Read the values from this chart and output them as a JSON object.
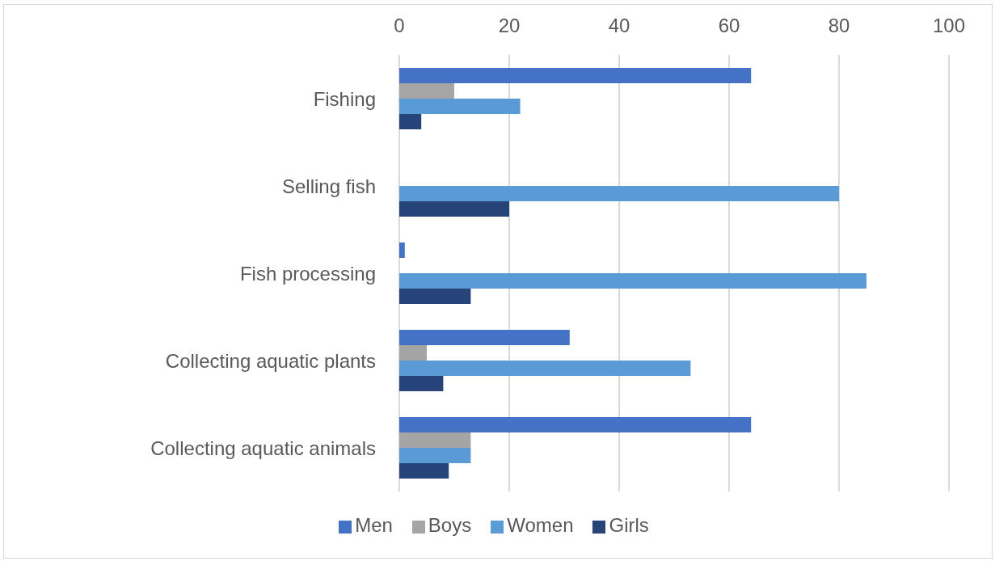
{
  "chart_data": {
    "type": "bar",
    "orientation": "horizontal",
    "categories": [
      "Fishing",
      "Selling fish",
      "Fish processing",
      "Collecting aquatic plants",
      "Collecting aquatic animals"
    ],
    "series": [
      {
        "name": "Men",
        "color": "#4472c4",
        "values": [
          64,
          0,
          1,
          31,
          64
        ]
      },
      {
        "name": "Boys",
        "color": "#a5a5a5",
        "values": [
          10,
          0,
          0,
          5,
          13
        ]
      },
      {
        "name": "Women",
        "color": "#5b9bd5",
        "values": [
          22,
          80,
          85,
          53,
          13
        ]
      },
      {
        "name": "Girls",
        "color": "#264478",
        "values": [
          4,
          20,
          13,
          8,
          9
        ]
      }
    ],
    "xlim": [
      0,
      100
    ],
    "xticks": [
      0,
      20,
      40,
      60,
      80,
      100
    ],
    "grid": "x",
    "legend": "bottom"
  }
}
